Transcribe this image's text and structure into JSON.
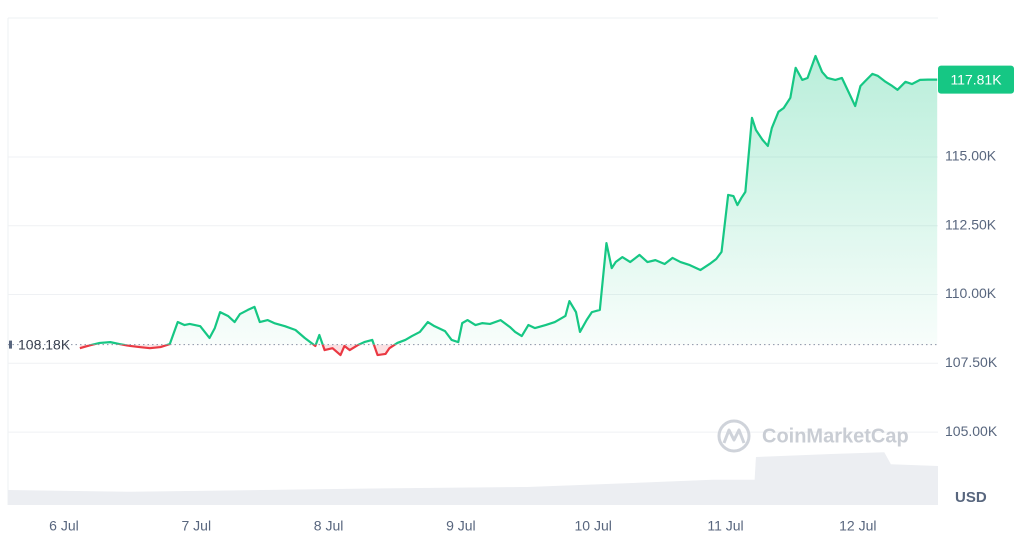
{
  "chart_data": {
    "type": "line",
    "x": [
      6.12,
      6.2,
      6.27,
      6.35,
      6.42,
      6.5,
      6.57,
      6.65,
      6.73,
      6.8,
      6.86,
      6.91,
      6.95,
      7.03,
      7.1,
      7.14,
      7.18,
      7.24,
      7.29,
      7.33,
      7.39,
      7.44,
      7.48,
      7.54,
      7.59,
      7.67,
      7.75,
      7.82,
      7.9,
      7.93,
      7.97,
      8.03,
      8.09,
      8.12,
      8.16,
      8.22,
      8.27,
      8.33,
      8.37,
      8.43,
      8.46,
      8.52,
      8.58,
      8.63,
      8.69,
      8.75,
      8.8,
      8.88,
      8.93,
      8.98,
      9.01,
      9.05,
      9.11,
      9.16,
      9.22,
      9.3,
      9.37,
      9.41,
      9.46,
      9.51,
      9.56,
      9.64,
      9.71,
      9.79,
      9.82,
      9.87,
      9.9,
      9.95,
      9.99,
      10.05,
      10.1,
      10.14,
      10.17,
      10.22,
      10.28,
      10.35,
      10.41,
      10.47,
      10.54,
      10.6,
      10.66,
      10.73,
      10.81,
      10.88,
      10.93,
      10.97,
      11.02,
      11.06,
      11.09,
      11.12,
      11.15,
      11.2,
      11.23,
      11.28,
      11.32,
      11.35,
      11.4,
      11.44,
      11.49,
      11.53,
      11.58,
      11.62,
      11.68,
      11.73,
      11.77,
      11.83,
      11.88,
      11.93,
      11.98,
      12.02,
      12.05,
      12.11,
      12.15,
      12.21,
      12.26,
      12.3,
      12.36,
      12.41,
      12.47,
      12.53,
      12.6
    ],
    "series": [
      {
        "color": "#16c784",
        "below_color": "#ea3943",
        "values": [
          108.05,
          108.16,
          108.24,
          108.27,
          108.2,
          108.13,
          108.09,
          108.05,
          108.09,
          108.2,
          109.0,
          108.89,
          108.93,
          108.85,
          108.42,
          108.78,
          109.36,
          109.22,
          109.0,
          109.29,
          109.44,
          109.55,
          109.0,
          109.07,
          108.96,
          108.85,
          108.71,
          108.42,
          108.13,
          108.53,
          107.98,
          108.05,
          107.8,
          108.13,
          107.98,
          108.16,
          108.27,
          108.35,
          107.8,
          107.84,
          108.05,
          108.24,
          108.35,
          108.49,
          108.64,
          109.0,
          108.85,
          108.67,
          108.35,
          108.27,
          108.96,
          109.07,
          108.89,
          108.96,
          108.93,
          109.07,
          108.82,
          108.64,
          108.49,
          108.89,
          108.78,
          108.89,
          109.0,
          109.22,
          109.76,
          109.36,
          108.64,
          109.07,
          109.36,
          109.44,
          111.87,
          110.96,
          111.18,
          111.36,
          111.18,
          111.44,
          111.18,
          111.25,
          111.11,
          111.33,
          111.18,
          111.07,
          110.89,
          111.11,
          111.29,
          111.55,
          113.62,
          113.58,
          113.25,
          113.51,
          113.73,
          116.42,
          115.98,
          115.62,
          115.4,
          116.05,
          116.64,
          116.78,
          117.15,
          118.24,
          117.8,
          117.87,
          118.67,
          118.09,
          117.87,
          117.8,
          117.87,
          117.36,
          116.85,
          117.58,
          117.73,
          118.02,
          117.95,
          117.73,
          117.58,
          117.44,
          117.73,
          117.65,
          117.8,
          117.81,
          117.81
        ]
      }
    ],
    "last_label": "117.81K",
    "baseline": 108.18,
    "baseline_label": "108.18K",
    "xlim": [
      5.577,
      12.606
    ],
    "ylim": [
      102.35,
      120.05
    ],
    "xticks": [
      {
        "value": 6,
        "label": "6 Jul"
      },
      {
        "value": 7,
        "label": "7 Jul"
      },
      {
        "value": 8,
        "label": "8 Jul"
      },
      {
        "value": 9,
        "label": "9 Jul"
      },
      {
        "value": 10,
        "label": "10 Jul"
      },
      {
        "value": 11,
        "label": "11 Jul"
      },
      {
        "value": 12,
        "label": "12 Jul"
      }
    ],
    "yticks": [
      {
        "value": 105,
        "label": "105.00K"
      },
      {
        "value": 107.5,
        "label": "107.50K"
      },
      {
        "value": 110,
        "label": "110.00K"
      },
      {
        "value": 112.5,
        "label": "112.50K"
      },
      {
        "value": 115,
        "label": "115.00K"
      }
    ],
    "grid": true,
    "currency": "USD",
    "watermark": "CoinMarketCap",
    "volume": {
      "color": "#eceef2",
      "vlim": [
        0,
        100
      ],
      "x": [
        5.577,
        6.5,
        7.5,
        8.5,
        9.5,
        10.1,
        10.9,
        11.22,
        11.23,
        11.8,
        12.2,
        12.25,
        12.606
      ],
      "values": [
        25,
        22,
        25,
        28,
        30,
        35,
        42,
        42,
        80,
        85,
        88,
        68,
        65
      ]
    }
  }
}
